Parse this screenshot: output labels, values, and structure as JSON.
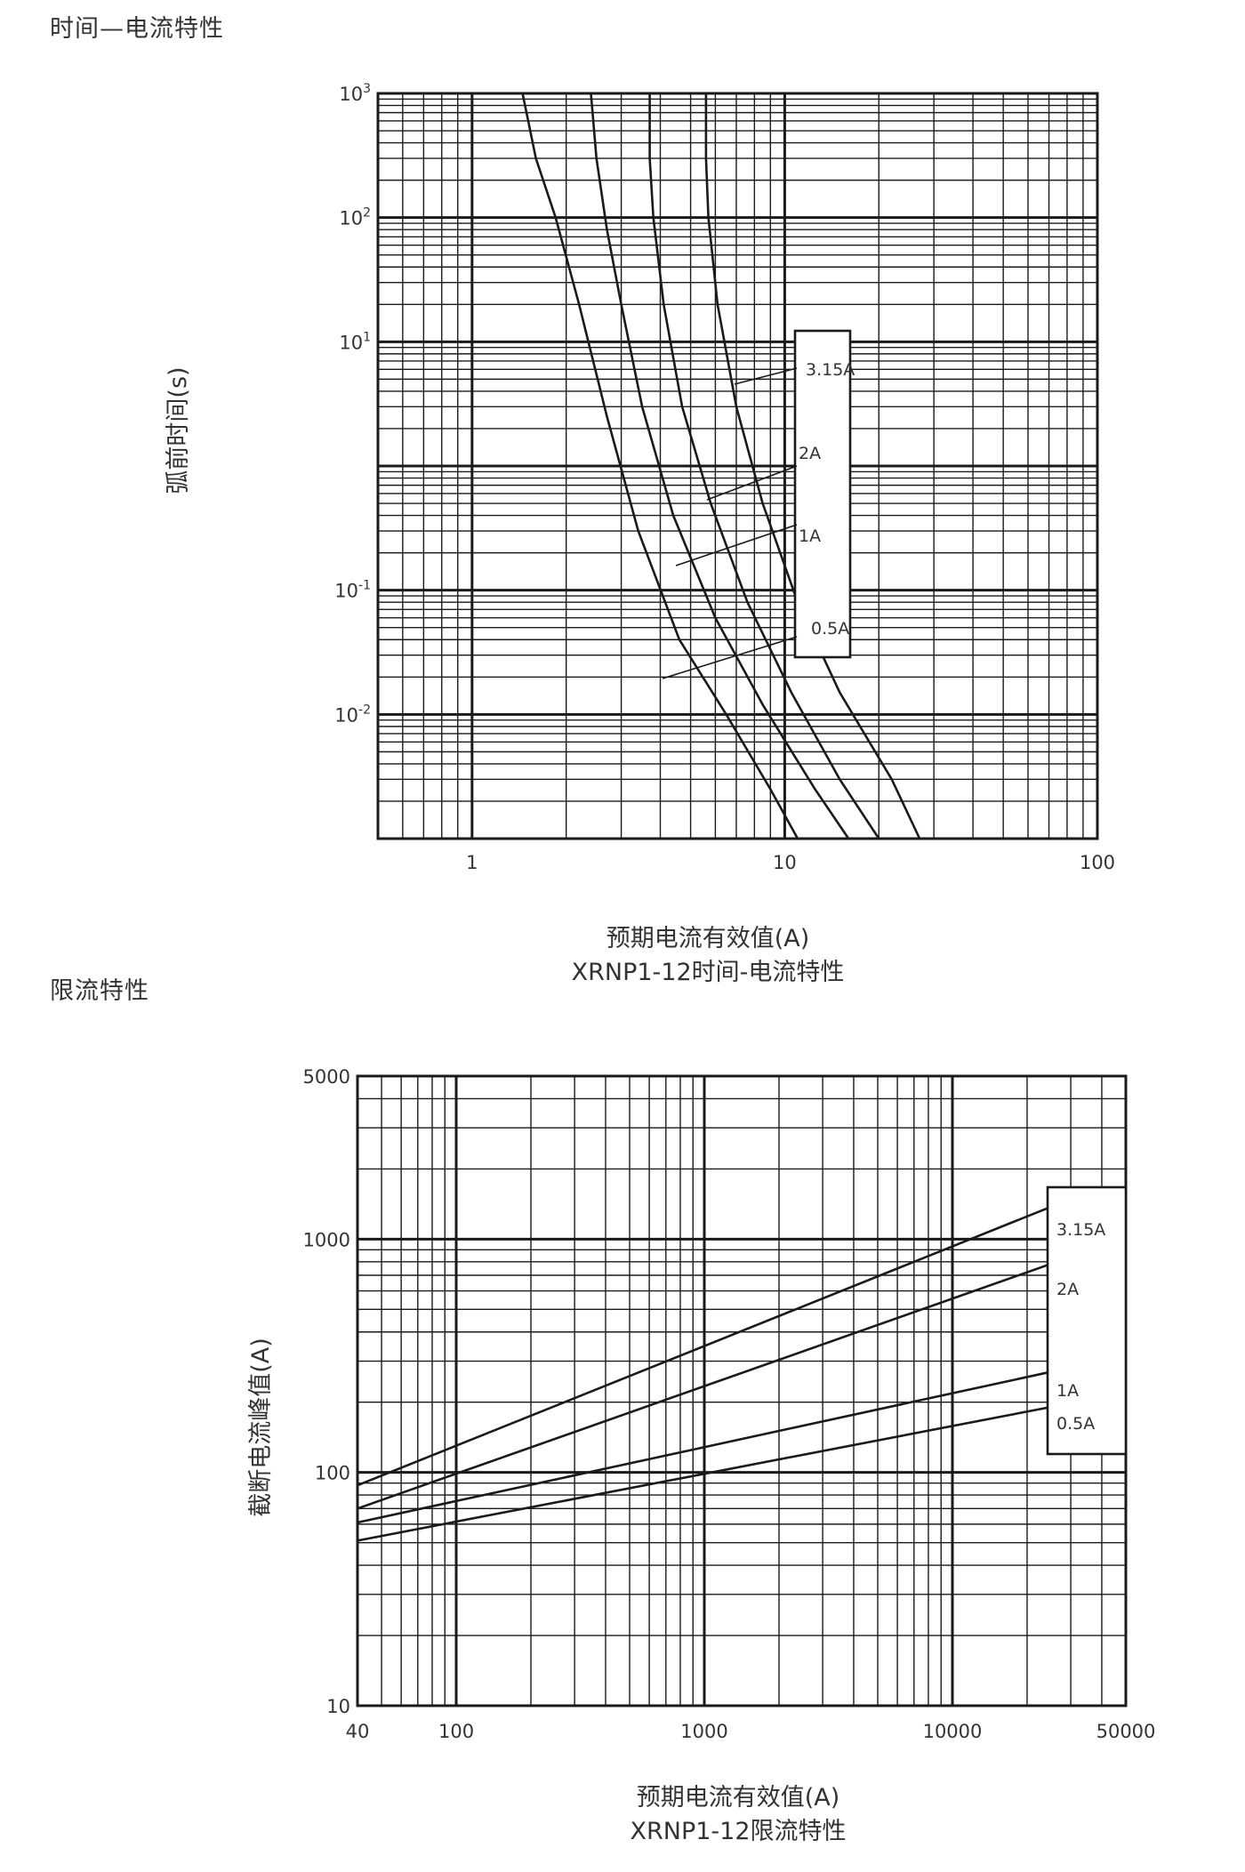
{
  "section_titles": [
    "时间—电流特性",
    "限流特性"
  ],
  "chart_data": [
    {
      "type": "line",
      "title": "XRNP1-12时间-电流特性",
      "xlabel": "预期电流有效值(A)",
      "ylabel": "弧前时间(s)",
      "x_scale": "log",
      "y_scale": "log",
      "xlim": [
        0.5,
        100
      ],
      "ylim": [
        0.001,
        1000
      ],
      "x_ticks": [
        {
          "value": 1,
          "label": "1"
        },
        {
          "value": 10,
          "label": "10"
        },
        {
          "value": 100,
          "label": "100"
        }
      ],
      "y_ticks": [
        {
          "value": 1000,
          "base": "10",
          "exp": "3"
        },
        {
          "value": 100,
          "base": "10",
          "exp": "2"
        },
        {
          "value": 10,
          "base": "10",
          "exp": "1"
        },
        {
          "value": 0.1,
          "base": "10",
          "exp": "-1"
        },
        {
          "value": 0.01,
          "base": "10",
          "exp": "-2"
        }
      ],
      "grid": true,
      "legend_position": "right",
      "series": [
        {
          "name": "0.5A",
          "x": [
            1.45,
            1.6,
            1.85,
            2.2,
            2.7,
            3.4,
            4.6,
            6.5,
            9.0,
            11.0
          ],
          "y": [
            1000,
            300,
            100,
            20,
            2.5,
            0.3,
            0.04,
            0.01,
            0.0025,
            0.001
          ]
        },
        {
          "name": "1A",
          "x": [
            2.4,
            2.5,
            2.7,
            3.0,
            3.5,
            4.4,
            6.0,
            8.5,
            12.5,
            16.0
          ],
          "y": [
            1000,
            300,
            80,
            20,
            3,
            0.4,
            0.06,
            0.012,
            0.0025,
            0.001
          ]
        },
        {
          "name": "2A",
          "x": [
            3.7,
            3.7,
            3.8,
            4.1,
            4.7,
            5.8,
            7.6,
            10.5,
            15.0,
            20.0
          ],
          "y": [
            1000,
            300,
            100,
            20,
            3,
            0.5,
            0.08,
            0.015,
            0.003,
            0.001
          ]
        },
        {
          "name": "3.15A",
          "x": [
            5.6,
            5.6,
            5.7,
            6.1,
            7.0,
            8.5,
            11.0,
            15.0,
            22.0,
            27.0
          ],
          "y": [
            1000,
            300,
            100,
            20,
            3,
            0.5,
            0.08,
            0.015,
            0.003,
            0.001
          ]
        }
      ],
      "legend_labels": [
        "3.15A",
        "2A",
        "1A",
        "0.5A"
      ]
    },
    {
      "type": "line",
      "title": "XRNP1-12限流特性",
      "xlabel": "预期电流有效值(A)",
      "ylabel": "截断电流峰值(A)",
      "x_scale": "log",
      "y_scale": "log",
      "xlim": [
        40,
        50000
      ],
      "ylim": [
        10,
        5000
      ],
      "x_ticks": [
        {
          "value": 40,
          "label": "40"
        },
        {
          "value": 100,
          "label": "100"
        },
        {
          "value": 1000,
          "label": "1000"
        },
        {
          "value": 10000,
          "label": "10000"
        },
        {
          "value": 50000,
          "label": "50000"
        }
      ],
      "y_ticks": [
        {
          "value": 5000,
          "label": "5000"
        },
        {
          "value": 1000,
          "label": "1000"
        },
        {
          "value": 100,
          "label": "100"
        },
        {
          "value": 10,
          "label": "10"
        }
      ],
      "grid": true,
      "legend_position": "right",
      "series": [
        {
          "name": "3.15A",
          "x": [
            40,
            33000
          ],
          "y": [
            88,
            1550
          ]
        },
        {
          "name": "2A",
          "x": [
            40,
            33000
          ],
          "y": [
            70,
            870
          ]
        },
        {
          "name": "1A",
          "x": [
            40,
            33000
          ],
          "y": [
            61,
            288
          ]
        },
        {
          "name": "0.5A",
          "x": [
            40,
            33000
          ],
          "y": [
            51,
            202
          ]
        }
      ],
      "legend_labels": [
        "3.15A",
        "2A",
        "1A",
        "0.5A"
      ]
    }
  ],
  "colors": {
    "ink": "#1a1a1a",
    "text": "#333333",
    "background": "#ffffff"
  }
}
